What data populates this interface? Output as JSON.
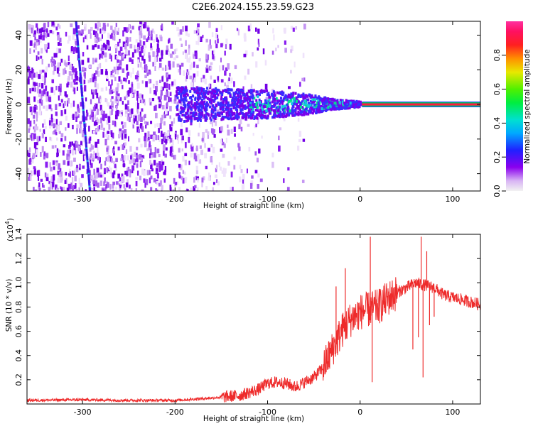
{
  "title": "C2E6.2024.155.23.59.G23",
  "colors": {
    "line": "#ee2b2b",
    "spectrum_core": "#7b00e8",
    "carrier_band_top": "#00c060",
    "carrier_band_mid": "#ff1840",
    "carrier_band_edge": "#2040ff"
  },
  "chart_data": [
    {
      "type": "heatmap",
      "xlabel": "Height of straight line (km)",
      "ylabel": "Frequency (Hz)",
      "xlim": [
        -360,
        130
      ],
      "ylim": [
        -50,
        48
      ],
      "x_ticks": [
        -300,
        -200,
        -100,
        0,
        100
      ],
      "y_ticks": [
        -40,
        -20,
        0,
        20,
        40
      ],
      "colorbar": {
        "label": "Normalized spectral amplitude",
        "range": [
          0,
          1
        ],
        "ticks": [
          "0.0",
          "0.2",
          "0.4",
          "0.6",
          "0.8"
        ],
        "tick_values": [
          0.0,
          0.2,
          0.4,
          0.6,
          0.8
        ]
      },
      "features": {
        "carrier_frequency_hz": 0,
        "carrier_start_height_km": 2,
        "drift_line": {
          "x": [
            -307,
            -292
          ],
          "y": [
            48,
            -50
          ]
        },
        "spread_envelope": {
          "x": [
            -200,
            -150,
            -100,
            -60,
            -30,
            0
          ],
          "half_width_hz": [
            10,
            9,
            8,
            6,
            3,
            1.5
          ]
        }
      }
    },
    {
      "type": "line",
      "xlabel": "Height of straight line (km)",
      "ylabel": "SNR (10 * v/v)",
      "y_multiplier": "(x10",
      "y_multiplier_exp": "4",
      "y_multiplier_close": ")",
      "xlim": [
        -360,
        130
      ],
      "ylim": [
        0,
        1.4
      ],
      "x_ticks": [
        -300,
        -200,
        -100,
        0,
        100
      ],
      "y_ticks": [
        0.2,
        0.4,
        0.6,
        0.8,
        1.0,
        1.2,
        1.4
      ],
      "series": [
        {
          "x": [
            -360,
            -300,
            -250,
            -200,
            -160,
            -130,
            -110,
            -100,
            -90,
            -80,
            -70,
            -60,
            -50,
            -40,
            -30,
            -20,
            -10,
            0,
            10,
            20,
            30,
            40,
            50,
            60,
            70,
            80,
            90,
            100,
            110,
            120,
            130
          ],
          "values": [
            0.03,
            0.035,
            0.03,
            0.03,
            0.05,
            0.07,
            0.12,
            0.17,
            0.18,
            0.17,
            0.14,
            0.18,
            0.22,
            0.3,
            0.45,
            0.6,
            0.7,
            0.76,
            0.78,
            0.8,
            0.87,
            0.92,
            0.96,
            1.0,
            0.98,
            0.96,
            0.9,
            0.88,
            0.86,
            0.84,
            0.82
          ]
        }
      ],
      "spikes": [
        {
          "x": 11,
          "y": 1.38
        },
        {
          "x": 13,
          "y": 0.18
        },
        {
          "x": -16,
          "y": 1.12
        },
        {
          "x": -26,
          "y": 0.97
        },
        {
          "x": -3,
          "y": 0.62
        },
        {
          "x": 21,
          "y": 0.95
        },
        {
          "x": 66,
          "y": 1.38
        },
        {
          "x": 63,
          "y": 0.55
        },
        {
          "x": 72,
          "y": 1.26
        },
        {
          "x": 75,
          "y": 0.65
        },
        {
          "x": 68,
          "y": 0.22
        },
        {
          "x": 57,
          "y": 0.45
        },
        {
          "x": 80,
          "y": 0.72
        }
      ]
    }
  ]
}
